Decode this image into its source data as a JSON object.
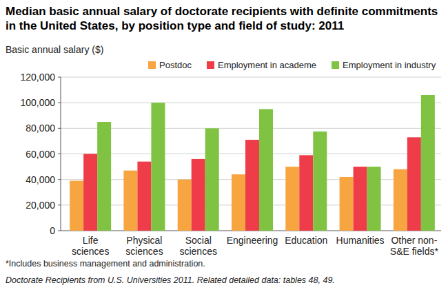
{
  "chart_data": {
    "type": "bar",
    "title": "Median basic annual salary of doctorate recipients with definite commitments in the United States, by position type and field of study: 2011",
    "y_label": "Basic annual salary ($)",
    "categories": [
      "Life sciences",
      "Physical sciences",
      "Social sciences",
      "Engineering",
      "Education",
      "Humanities",
      "Other non-S&E fields*"
    ],
    "series": [
      {
        "name": "Postdoc",
        "color": "#f7a541",
        "values": [
          39000,
          47000,
          40000,
          44000,
          50000,
          42000,
          48000
        ]
      },
      {
        "name": "Employment in academe",
        "color": "#ee3d48",
        "values": [
          60000,
          54000,
          56000,
          71000,
          59000,
          50000,
          73000
        ]
      },
      {
        "name": "Employment in industry",
        "color": "#80c342",
        "values": [
          85000,
          100000,
          80000,
          95000,
          77500,
          50000,
          106000
        ]
      }
    ],
    "ylim": [
      0,
      120000
    ],
    "yticks": [
      0,
      {
        "value": 20000,
        "label": "20,000"
      },
      {
        "value": 40000,
        "label": "40,000"
      },
      {
        "value": 60000,
        "label": "60,000"
      },
      {
        "value": 80000,
        "label": "80,000"
      },
      {
        "value": 100000,
        "label": "100,000"
      },
      {
        "value": 120000,
        "label": "120,000"
      }
    ],
    "grid": true,
    "legend": "top",
    "notes": [
      "*Includes business management and administration.",
      "Doctorate Recipients from U.S. Universities 2011. Related detailed data: tables 48, 49."
    ]
  }
}
